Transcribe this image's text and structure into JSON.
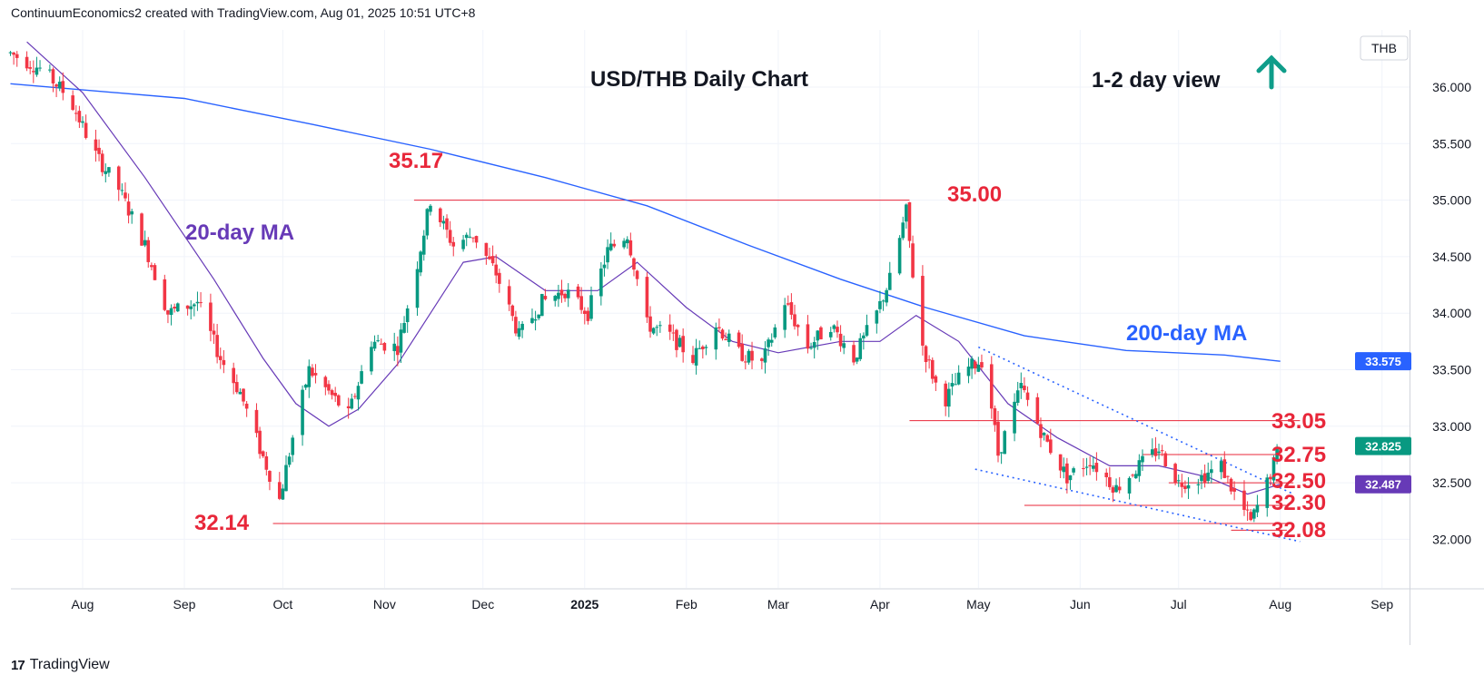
{
  "header": {
    "text": "ContinuumEconomics2 created with TradingView.com, Aug 01, 2025 10:51 UTC+8"
  },
  "footer": {
    "brand": "TradingView",
    "logo": "17"
  },
  "chart_data": {
    "type": "candlestick",
    "title": "USD/THB Daily Chart",
    "view_label": "1-2 day view",
    "view_icon": "up-arrow-icon",
    "currency": "THB",
    "ylim": [
      31.6,
      36.5
    ],
    "y_ticks": [
      "36.000",
      "35.500",
      "35.000",
      "34.500",
      "34.000",
      "33.500",
      "33.000",
      "32.500",
      "32.000"
    ],
    "x_ticks": [
      "Aug",
      "Sep",
      "Oct",
      "Nov",
      "Dec",
      "2025",
      "Feb",
      "Mar",
      "Apr",
      "May",
      "Jun",
      "Jul",
      "Aug",
      "Sep"
    ],
    "colors": {
      "up": "#089981",
      "down": "#f23645",
      "ma200": "#2962ff",
      "ma20": "#673ab7",
      "levels": "#e8273a",
      "current": "#089981",
      "ma20_badge": "#673ab7",
      "ma200_badge": "#2962ff"
    },
    "last_price": "32.825",
    "ma20_value": "32.487",
    "ma200_value": "33.575",
    "ma_labels": {
      "ma20": "20-day MA",
      "ma200": "200-day MA"
    },
    "levels": [
      {
        "label": "35.17",
        "value": 35.17
      },
      {
        "label": "35.00",
        "value": 35.0
      },
      {
        "label": "33.05",
        "value": 33.05
      },
      {
        "label": "32.75",
        "value": 32.75
      },
      {
        "label": "32.50",
        "value": 32.5
      },
      {
        "label": "32.30",
        "value": 32.3
      },
      {
        "label": "32.08",
        "value": 32.08
      },
      {
        "label": "32.14",
        "value": 32.14
      }
    ],
    "price_path": [
      [
        "2024-07-10",
        36.3
      ],
      [
        "2024-07-20",
        36.15
      ],
      [
        "2024-07-28",
        35.9
      ],
      [
        "2024-08-05",
        35.4
      ],
      [
        "2024-08-12",
        35.1
      ],
      [
        "2024-08-20",
        34.6
      ],
      [
        "2024-08-27",
        34.0
      ],
      [
        "2024-09-05",
        34.1
      ],
      [
        "2024-09-12",
        33.6
      ],
      [
        "2024-09-18",
        33.3
      ],
      [
        "2024-09-24",
        32.8
      ],
      [
        "2024-09-30",
        32.35
      ],
      [
        "2024-10-04",
        32.9
      ],
      [
        "2024-10-09",
        33.5
      ],
      [
        "2024-10-15",
        33.3
      ],
      [
        "2024-10-21",
        33.1
      ],
      [
        "2024-10-28",
        33.75
      ],
      [
        "2024-11-05",
        33.7
      ],
      [
        "2024-11-10",
        34.3
      ],
      [
        "2024-11-15",
        35.0
      ],
      [
        "2024-11-22",
        34.6
      ],
      [
        "2024-11-28",
        34.7
      ],
      [
        "2024-12-05",
        34.35
      ],
      [
        "2024-12-12",
        33.8
      ],
      [
        "2024-12-19",
        34.1
      ],
      [
        "2024-12-26",
        34.2
      ],
      [
        "2025-01-02",
        34.0
      ],
      [
        "2025-01-08",
        34.55
      ],
      [
        "2025-01-14",
        34.7
      ],
      [
        "2025-01-20",
        33.9
      ],
      [
        "2025-01-27",
        33.8
      ],
      [
        "2025-02-03",
        33.6
      ],
      [
        "2025-02-10",
        33.9
      ],
      [
        "2025-02-17",
        33.65
      ],
      [
        "2025-02-24",
        33.55
      ],
      [
        "2025-03-03",
        34.1
      ],
      [
        "2025-03-10",
        33.7
      ],
      [
        "2025-03-17",
        33.9
      ],
      [
        "2025-03-24",
        33.6
      ],
      [
        "2025-03-31",
        34.0
      ],
      [
        "2025-04-04",
        34.3
      ],
      [
        "2025-04-09",
        34.9
      ],
      [
        "2025-04-13",
        33.8
      ],
      [
        "2025-04-20",
        33.2
      ],
      [
        "2025-04-27",
        33.5
      ],
      [
        "2025-05-03",
        33.6
      ],
      [
        "2025-05-07",
        32.75
      ],
      [
        "2025-05-14",
        33.35
      ],
      [
        "2025-05-21",
        32.9
      ],
      [
        "2025-05-28",
        32.55
      ],
      [
        "2025-06-04",
        32.7
      ],
      [
        "2025-06-12",
        32.45
      ],
      [
        "2025-06-19",
        32.65
      ],
      [
        "2025-06-25",
        32.8
      ],
      [
        "2025-07-01",
        32.5
      ],
      [
        "2025-07-08",
        32.55
      ],
      [
        "2025-07-14",
        32.65
      ],
      [
        "2025-07-18",
        32.4
      ],
      [
        "2025-07-23",
        32.15
      ],
      [
        "2025-07-28",
        32.5
      ],
      [
        "2025-08-01",
        32.83
      ]
    ],
    "ma200_path": [
      [
        "2024-07-10",
        36.03
      ],
      [
        "2024-09-01",
        35.9
      ],
      [
        "2024-10-10",
        35.67
      ],
      [
        "2024-11-15",
        35.45
      ],
      [
        "2024-12-20",
        35.2
      ],
      [
        "2025-01-20",
        34.95
      ],
      [
        "2025-02-20",
        34.6
      ],
      [
        "2025-03-20",
        34.3
      ],
      [
        "2025-04-15",
        34.05
      ],
      [
        "2025-05-15",
        33.8
      ],
      [
        "2025-06-15",
        33.67
      ],
      [
        "2025-07-15",
        33.63
      ],
      [
        "2025-08-01",
        33.575
      ]
    ],
    "ma20_path": [
      [
        "2024-07-15",
        36.4
      ],
      [
        "2024-08-01",
        35.95
      ],
      [
        "2024-08-20",
        35.2
      ],
      [
        "2024-09-10",
        34.3
      ],
      [
        "2024-09-25",
        33.6
      ],
      [
        "2024-10-05",
        33.2
      ],
      [
        "2024-10-15",
        33.0
      ],
      [
        "2024-10-24",
        33.15
      ],
      [
        "2024-11-05",
        33.55
      ],
      [
        "2024-11-15",
        34.0
      ],
      [
        "2024-11-25",
        34.45
      ],
      [
        "2024-12-05",
        34.5
      ],
      [
        "2024-12-20",
        34.2
      ],
      [
        "2025-01-05",
        34.2
      ],
      [
        "2025-01-17",
        34.45
      ],
      [
        "2025-02-01",
        34.05
      ],
      [
        "2025-02-15",
        33.75
      ],
      [
        "2025-03-01",
        33.65
      ],
      [
        "2025-03-20",
        33.75
      ],
      [
        "2025-04-01",
        33.75
      ],
      [
        "2025-04-12",
        33.98
      ],
      [
        "2025-04-25",
        33.75
      ],
      [
        "2025-05-10",
        33.2
      ],
      [
        "2025-05-25",
        32.9
      ],
      [
        "2025-06-10",
        32.65
      ],
      [
        "2025-06-25",
        32.65
      ],
      [
        "2025-07-10",
        32.55
      ],
      [
        "2025-07-22",
        32.4
      ],
      [
        "2025-08-01",
        32.487
      ]
    ],
    "trendlines": [
      {
        "from": [
          "2025-05-01",
          33.7
        ],
        "to": [
          "2025-08-05",
          32.4
        ]
      },
      {
        "from": [
          "2025-04-30",
          32.62
        ],
        "to": [
          "2025-08-07",
          31.98
        ]
      }
    ]
  }
}
